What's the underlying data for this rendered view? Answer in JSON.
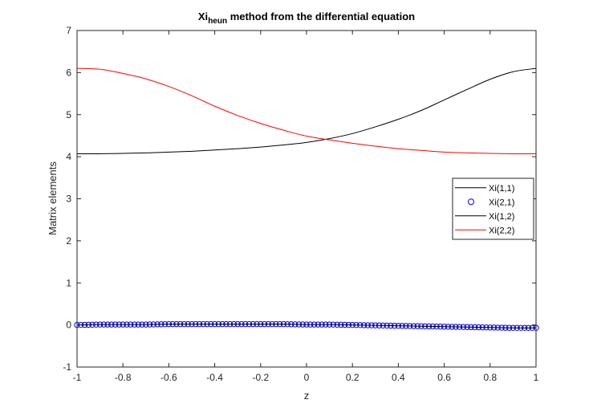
{
  "chart_data": {
    "type": "line",
    "title_main": "Xi",
    "title_sub": "heun",
    "title_rest": " method from the differential equation",
    "xlabel": "z",
    "ylabel": "Matrix elements",
    "xlim": [
      -1,
      1
    ],
    "ylim": [
      -1,
      7
    ],
    "xticks": [
      -1,
      -0.8,
      -0.6,
      -0.4,
      -0.2,
      0,
      0.2,
      0.4,
      0.6,
      0.8,
      1
    ],
    "xtick_labels": [
      "-1",
      "-0.8",
      "-0.6",
      "-0.4",
      "-0.2",
      "0",
      "0.2",
      "0.4",
      "0.6",
      "0.8",
      "1"
    ],
    "yticks": [
      -1,
      0,
      1,
      2,
      3,
      4,
      5,
      6,
      7
    ],
    "ytick_labels": [
      "-1",
      "0",
      "1",
      "2",
      "3",
      "4",
      "5",
      "6",
      "7"
    ],
    "grid": false,
    "legend_position": "right",
    "x": [
      -1,
      -0.9,
      -0.8,
      -0.7,
      -0.6,
      -0.5,
      -0.4,
      -0.3,
      -0.2,
      -0.1,
      0,
      0.1,
      0.2,
      0.3,
      0.4,
      0.5,
      0.6,
      0.7,
      0.8,
      0.9,
      1
    ],
    "series": [
      {
        "name": "Xi(1,1)",
        "style": "line",
        "color": "#000000",
        "values": [
          4.07,
          4.07,
          4.08,
          4.09,
          4.11,
          4.13,
          4.16,
          4.19,
          4.23,
          4.28,
          4.34,
          4.43,
          4.55,
          4.71,
          4.89,
          5.1,
          5.35,
          5.6,
          5.84,
          6.02,
          6.1
        ]
      },
      {
        "name": "Xi(2,1)",
        "style": "marker",
        "color": "#0000ff",
        "values": [
          0.0,
          0.01,
          0.01,
          0.01,
          0.02,
          0.02,
          0.02,
          0.02,
          0.02,
          0.02,
          0.01,
          0.01,
          0.0,
          -0.01,
          -0.02,
          -0.03,
          -0.04,
          -0.05,
          -0.06,
          -0.07,
          -0.07
        ]
      },
      {
        "name": "Xi(1,2)",
        "style": "line",
        "color": "#000000",
        "values": [
          0.0,
          0.01,
          0.01,
          0.01,
          0.02,
          0.02,
          0.02,
          0.02,
          0.02,
          0.02,
          0.01,
          0.01,
          0.0,
          -0.01,
          -0.02,
          -0.03,
          -0.04,
          -0.05,
          -0.06,
          -0.07,
          -0.07
        ]
      },
      {
        "name": "Xi(2,2)",
        "style": "line",
        "color": "#ff0000",
        "values": [
          6.1,
          6.08,
          5.98,
          5.85,
          5.67,
          5.45,
          5.2,
          4.98,
          4.79,
          4.63,
          4.49,
          4.4,
          4.32,
          4.25,
          4.19,
          4.15,
          4.11,
          4.09,
          4.08,
          4.07,
          4.07
        ]
      }
    ]
  }
}
